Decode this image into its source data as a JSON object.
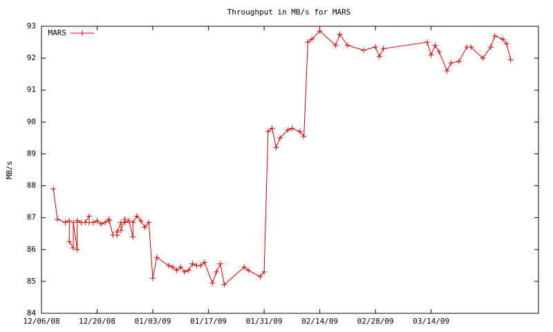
{
  "chart_data": {
    "type": "line",
    "title": "Throughput in MB/s for MARS",
    "y_label": "MB/s",
    "legend": "top-left",
    "grid": false,
    "xlim": [
      "2008-12-06",
      "2009-04-10"
    ],
    "xticks": [
      {
        "value": "2008-12-06",
        "label": "12/06/08"
      },
      {
        "value": "2008-12-20",
        "label": "12/20/08"
      },
      {
        "value": "2009-01-03",
        "label": "01/03/09"
      },
      {
        "value": "2009-01-17",
        "label": "01/17/09"
      },
      {
        "value": "2009-01-31",
        "label": "01/31/09"
      },
      {
        "value": "2009-02-14",
        "label": "02/14/09"
      },
      {
        "value": "2009-02-28",
        "label": "02/28/09"
      },
      {
        "value": "2009-03-14",
        "label": "03/14/09"
      }
    ],
    "ylim": [
      84,
      93
    ],
    "yticks": [
      84,
      85,
      86,
      87,
      88,
      89,
      90,
      91,
      92,
      93
    ],
    "x": [
      "2008-12-09",
      "2008-12-10",
      "2008-12-12",
      "2008-12-13",
      "2008-12-13",
      "2008-12-14",
      "2008-12-14",
      "2008-12-15",
      "2008-12-15",
      "2008-12-16",
      "2008-12-17",
      "2008-12-18",
      "2008-12-18",
      "2008-12-19",
      "2008-12-20",
      "2008-12-21",
      "2008-12-22",
      "2008-12-23",
      "2008-12-23",
      "2008-12-24",
      "2008-12-25",
      "2008-12-25",
      "2008-12-26",
      "2008-12-26",
      "2008-12-27",
      "2008-12-27",
      "2008-12-28",
      "2008-12-29",
      "2008-12-29",
      "2008-12-30",
      "2008-12-31",
      "2009-01-01",
      "2009-01-02",
      "2009-01-03",
      "2009-01-04",
      "2009-01-07",
      "2009-01-08",
      "2009-01-09",
      "2009-01-10",
      "2009-01-11",
      "2009-01-12",
      "2009-01-13",
      "2009-01-14",
      "2009-01-15",
      "2009-01-16",
      "2009-01-18",
      "2009-01-19",
      "2009-01-20",
      "2009-01-21",
      "2009-01-26",
      "2009-01-27",
      "2009-01-30",
      "2009-01-31",
      "2009-02-01",
      "2009-02-02",
      "2009-02-03",
      "2009-02-04",
      "2009-02-06",
      "2009-02-07",
      "2009-02-09",
      "2009-02-10",
      "2009-02-11",
      "2009-02-12",
      "2009-02-14",
      "2009-02-18",
      "2009-02-19",
      "2009-02-21",
      "2009-02-25",
      "2009-02-28",
      "2009-03-01",
      "2009-03-02",
      "2009-03-13",
      "2009-03-14",
      "2009-03-15",
      "2009-03-16",
      "2009-03-18",
      "2009-03-19",
      "2009-03-21",
      "2009-03-23",
      "2009-03-24",
      "2009-03-27",
      "2009-03-29",
      "2009-03-30",
      "2009-04-01",
      "2009-04-02",
      "2009-04-03"
    ],
    "series": [
      {
        "name": "MARS",
        "color": "#cc0000",
        "values": [
          87.9,
          86.95,
          86.85,
          86.9,
          86.25,
          86.05,
          86.85,
          86.0,
          86.9,
          86.85,
          86.85,
          87.05,
          86.85,
          86.85,
          86.9,
          86.8,
          86.85,
          86.95,
          86.9,
          86.45,
          86.45,
          86.55,
          86.85,
          86.6,
          86.95,
          86.85,
          86.9,
          86.4,
          86.85,
          87.05,
          86.9,
          86.7,
          86.85,
          85.1,
          85.75,
          85.5,
          85.45,
          85.35,
          85.45,
          85.3,
          85.35,
          85.55,
          85.5,
          85.5,
          85.6,
          84.95,
          85.3,
          85.55,
          84.9,
          85.45,
          85.35,
          85.15,
          85.3,
          89.7,
          89.8,
          89.2,
          89.5,
          89.75,
          89.8,
          89.7,
          89.55,
          92.5,
          92.6,
          92.85,
          92.4,
          92.75,
          92.4,
          92.25,
          92.35,
          92.05,
          92.3,
          92.5,
          92.1,
          92.4,
          92.2,
          91.6,
          91.85,
          91.9,
          92.35,
          92.35,
          92.0,
          92.35,
          92.7,
          92.6,
          92.45,
          91.95
        ]
      }
    ]
  }
}
